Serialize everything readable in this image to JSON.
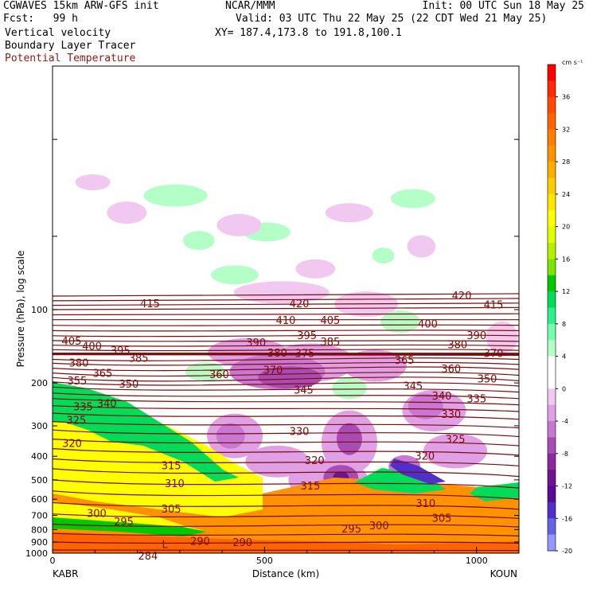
{
  "header": {
    "model": "CGWAVES 15km ARW-GFS init",
    "center": "NCAR/MMM",
    "init": "Init: 00 UTC Sun 18 May 25",
    "fcst": "Fcst:   99 h",
    "valid": "Valid: 03 UTC Thu 22 May 25 (22 CDT Wed 21 May 25)",
    "field1": "Vertical velocity",
    "field2": "Boundary Layer Tracer",
    "field3": "Potential Temperature",
    "xy": "XY= 187.4,173.8 to 191.8,100.1"
  },
  "colors": {
    "theta": "#7a0c0c",
    "field3_text": "#8b1a1a"
  },
  "chart_data": {
    "type": "heatmap",
    "ylabel": "Pressure (hPa), log scale",
    "xlabel": "Distance (km)",
    "x_endpoints": {
      "left": "KABR",
      "right": "KOUN"
    },
    "xlim": [
      0,
      1100
    ],
    "x_ticks": [
      0,
      500,
      1000
    ],
    "ylim": [
      1000,
      10
    ],
    "y_scale": "log",
    "y_ticks": [
      100,
      200,
      300,
      400,
      500,
      600,
      700,
      800,
      900,
      1000
    ],
    "colorbar": {
      "unit": "cm s⁻¹",
      "tick_labels": [
        36,
        32,
        28,
        24,
        20,
        16,
        12,
        8,
        4,
        0,
        -4,
        -8,
        -12,
        -16,
        -20
      ],
      "levels": [
        {
          "lo": 38,
          "color": "#ff0000"
        },
        {
          "lo": 36,
          "color": "#ff2a00"
        },
        {
          "lo": 34,
          "color": "#ff4a00"
        },
        {
          "lo": 32,
          "color": "#ff6400"
        },
        {
          "lo": 30,
          "color": "#ff7d00"
        },
        {
          "lo": 28,
          "color": "#ff9200"
        },
        {
          "lo": 26,
          "color": "#ffad00"
        },
        {
          "lo": 24,
          "color": "#ffcc00"
        },
        {
          "lo": 22,
          "color": "#ffe600"
        },
        {
          "lo": 20,
          "color": "#ffff00"
        },
        {
          "lo": 18,
          "color": "#e0ff00"
        },
        {
          "lo": 16,
          "color": "#b4f000"
        },
        {
          "lo": 14,
          "color": "#78e600"
        },
        {
          "lo": 12,
          "color": "#00c800"
        },
        {
          "lo": 10,
          "color": "#00dc5a"
        },
        {
          "lo": 8,
          "color": "#2cf08c"
        },
        {
          "lo": 6,
          "color": "#74ffb0"
        },
        {
          "lo": 4,
          "color": "#b4ffc8"
        },
        {
          "lo": 2,
          "color": "#ffffff"
        },
        {
          "lo": 0,
          "color": "#ffffff"
        },
        {
          "lo": -2,
          "color": "#f0c8f0"
        },
        {
          "lo": -4,
          "color": "#dfa0e6"
        },
        {
          "lo": -6,
          "color": "#c878d2"
        },
        {
          "lo": -8,
          "color": "#a84cb4"
        },
        {
          "lo": -10,
          "color": "#8c28a0"
        },
        {
          "lo": -12,
          "color": "#6e148c"
        },
        {
          "lo": -14,
          "color": "#5a0a96"
        },
        {
          "lo": -16,
          "color": "#5030c8"
        },
        {
          "lo": -18,
          "color": "#6464e6"
        },
        {
          "lo": -20,
          "color": "#9696ff"
        }
      ]
    },
    "theta_series": [
      {
        "name": "Potential Temperature",
        "units": "K",
        "labels": [
          {
            "v": 415,
            "x": 230,
            "p": 95
          },
          {
            "v": 405,
            "x": 45,
            "p": 135
          },
          {
            "v": 400,
            "x": 93,
            "p": 142
          },
          {
            "v": 395,
            "x": 160,
            "p": 148
          },
          {
            "v": 385,
            "x": 203,
            "p": 159
          },
          {
            "v": 380,
            "x": 62,
            "p": 166
          },
          {
            "v": 365,
            "x": 118,
            "p": 183
          },
          {
            "v": 355,
            "x": 58,
            "p": 197
          },
          {
            "v": 350,
            "x": 180,
            "p": 203
          },
          {
            "v": 340,
            "x": 128,
            "p": 244
          },
          {
            "v": 335,
            "x": 72,
            "p": 251
          },
          {
            "v": 325,
            "x": 56,
            "p": 286
          },
          {
            "v": 320,
            "x": 46,
            "p": 355
          },
          {
            "v": 315,
            "x": 280,
            "p": 439
          },
          {
            "v": 310,
            "x": 288,
            "p": 520
          },
          {
            "v": 305,
            "x": 280,
            "p": 660
          },
          {
            "v": 300,
            "x": 104,
            "p": 690
          },
          {
            "v": 295,
            "x": 168,
            "p": 745
          },
          {
            "v": 290,
            "x": 348,
            "p": 895
          },
          {
            "v": 290,
            "x": 448,
            "p": 907
          },
          {
            "v": 284,
            "x": 225,
            "p": 1030
          },
          {
            "v": 360,
            "x": 393,
            "p": 185
          },
          {
            "v": 370,
            "x": 520,
            "p": 178
          },
          {
            "v": 390,
            "x": 480,
            "p": 137
          },
          {
            "v": 380,
            "x": 530,
            "p": 151
          },
          {
            "v": 375,
            "x": 595,
            "p": 152
          },
          {
            "v": 410,
            "x": 550,
            "p": 111
          },
          {
            "v": 420,
            "x": 582,
            "p": 95
          },
          {
            "v": 395,
            "x": 600,
            "p": 128
          },
          {
            "v": 405,
            "x": 655,
            "p": 111
          },
          {
            "v": 385,
            "x": 655,
            "p": 136
          },
          {
            "v": 345,
            "x": 592,
            "p": 215
          },
          {
            "v": 330,
            "x": 582,
            "p": 318
          },
          {
            "v": 320,
            "x": 618,
            "p": 417
          },
          {
            "v": 315,
            "x": 608,
            "p": 532
          },
          {
            "v": 295,
            "x": 705,
            "p": 797
          },
          {
            "v": 300,
            "x": 770,
            "p": 773
          },
          {
            "v": 310,
            "x": 880,
            "p": 626
          },
          {
            "v": 305,
            "x": 918,
            "p": 722
          },
          {
            "v": 320,
            "x": 878,
            "p": 401
          },
          {
            "v": 325,
            "x": 950,
            "p": 342
          },
          {
            "v": 330,
            "x": 940,
            "p": 270
          },
          {
            "v": 335,
            "x": 1000,
            "p": 233
          },
          {
            "v": 340,
            "x": 918,
            "p": 227
          },
          {
            "v": 345,
            "x": 850,
            "p": 207
          },
          {
            "v": 350,
            "x": 1025,
            "p": 193
          },
          {
            "v": 360,
            "x": 940,
            "p": 176
          },
          {
            "v": 365,
            "x": 830,
            "p": 162
          },
          {
            "v": 370,
            "x": 1040,
            "p": 152
          },
          {
            "v": 380,
            "x": 955,
            "p": 140
          },
          {
            "v": 390,
            "x": 1000,
            "p": 128
          },
          {
            "v": 400,
            "x": 885,
            "p": 115
          },
          {
            "v": 415,
            "x": 1040,
            "p": 96
          },
          {
            "v": 420,
            "x": 965,
            "p": 88
          }
        ]
      }
    ],
    "annotations": [
      {
        "text": "L",
        "x": 265,
        "p": 925
      }
    ]
  }
}
